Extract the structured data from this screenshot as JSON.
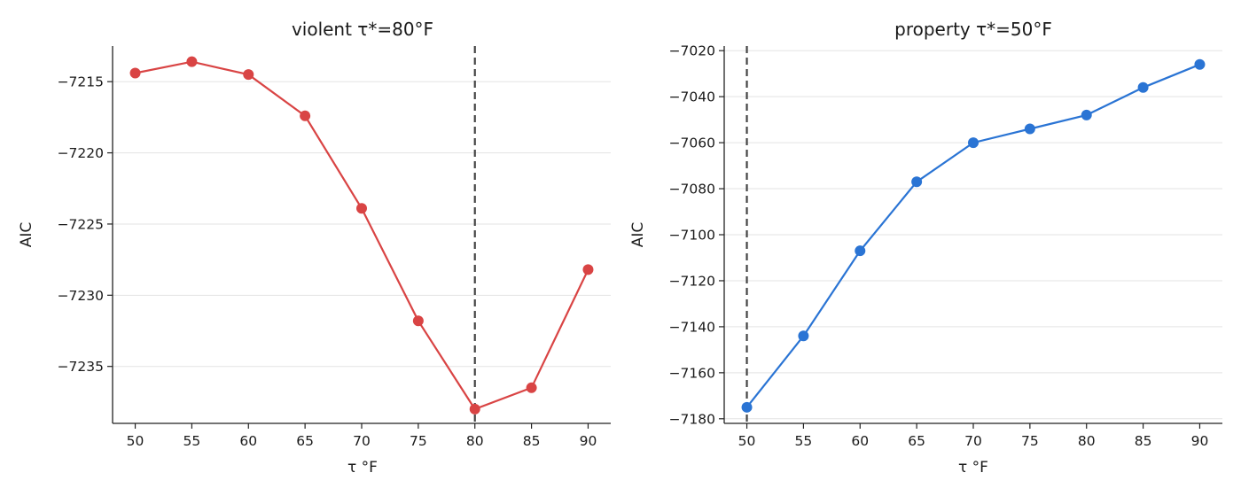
{
  "chart_data": [
    {
      "type": "line",
      "title": "violent τ*=80°F",
      "xlabel": "τ °F",
      "ylabel": "AIC",
      "x": [
        50,
        55,
        60,
        65,
        70,
        75,
        80,
        85,
        90
      ],
      "series": [
        {
          "values": [
            -7214.4,
            -7213.6,
            -7214.5,
            -7217.4,
            -7223.9,
            -7231.8,
            -7238.0,
            -7236.5,
            -7228.2
          ],
          "color": "#d94444"
        }
      ],
      "xticks": [
        50,
        55,
        60,
        65,
        70,
        75,
        80,
        85,
        90
      ],
      "yticks": [
        -7235,
        -7230,
        -7225,
        -7220,
        -7215
      ],
      "xlim": [
        48,
        92
      ],
      "ylim": [
        -7239.0,
        -7212.5
      ],
      "vline": 80,
      "grid": "y"
    },
    {
      "type": "line",
      "title": "property τ*=50°F",
      "xlabel": "τ °F",
      "ylabel": "AIC",
      "x": [
        50,
        55,
        60,
        65,
        70,
        75,
        80,
        85,
        90
      ],
      "series": [
        {
          "values": [
            -7175,
            -7144,
            -7107,
            -7077,
            -7060,
            -7054,
            -7048,
            -7036,
            -7026
          ],
          "color": "#2a74d4"
        }
      ],
      "xticks": [
        50,
        55,
        60,
        65,
        70,
        75,
        80,
        85,
        90
      ],
      "yticks": [
        -7180,
        -7160,
        -7140,
        -7120,
        -7100,
        -7080,
        -7060,
        -7040,
        -7020
      ],
      "xlim": [
        48,
        92
      ],
      "ylim": [
        -7182,
        -7018
      ],
      "vline": 50,
      "grid": "y"
    }
  ]
}
